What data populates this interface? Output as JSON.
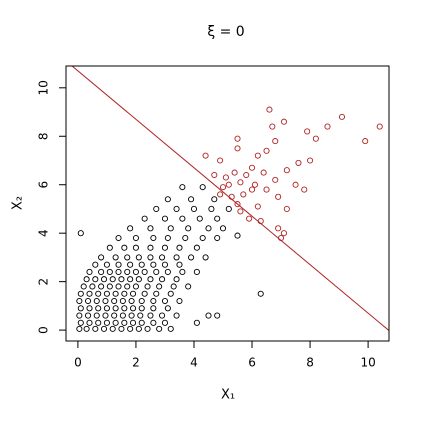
{
  "chart_data": {
    "type": "scatter",
    "title": "ξ = 0",
    "x_label": "X₁",
    "y_label": "X₂",
    "xlim": [
      -0.41,
      10.72
    ],
    "ylim": [
      -0.45,
      10.9
    ],
    "xticks": [
      0,
      2,
      4,
      6,
      8,
      10
    ],
    "yticks": [
      0,
      2,
      4,
      6,
      8,
      10
    ],
    "line": {
      "intercept": 10.7,
      "slope": -1,
      "color": "#b22222"
    },
    "series": [
      {
        "color": "#000000",
        "x": [
          0.05,
          0.3,
          0.6,
          0.9,
          1.2,
          1.5,
          1.8,
          2.1,
          2.4,
          2.8,
          3.2,
          0.1,
          0.4,
          0.7,
          1.0,
          1.3,
          1.6,
          1.9,
          2.2,
          2.6,
          3.0,
          0.05,
          0.35,
          0.65,
          0.95,
          1.25,
          1.55,
          1.85,
          2.15,
          2.5,
          2.9,
          3.4,
          0.1,
          0.4,
          0.7,
          1.0,
          1.3,
          1.6,
          1.9,
          2.2,
          2.6,
          3.1,
          0.05,
          0.35,
          0.65,
          0.95,
          1.25,
          1.55,
          1.85,
          2.2,
          2.6,
          3.0,
          3.5,
          0.1,
          0.4,
          0.7,
          1.0,
          1.3,
          1.6,
          1.9,
          2.3,
          2.7,
          3.2,
          0.2,
          0.5,
          0.8,
          1.1,
          1.4,
          1.7,
          2.0,
          2.4,
          2.8,
          3.3,
          3.8,
          0.3,
          0.6,
          0.9,
          1.2,
          1.5,
          1.8,
          2.1,
          2.5,
          2.9,
          3.4,
          0.4,
          0.8,
          1.1,
          1.4,
          1.7,
          2.0,
          2.3,
          2.7,
          3.1,
          3.6,
          4.1,
          0.6,
          1.0,
          1.4,
          1.8,
          2.2,
          2.6,
          3.0,
          3.5,
          0.8,
          1.3,
          1.7,
          2.1,
          2.5,
          2.9,
          3.4,
          3.9,
          4.4,
          1.1,
          1.6,
          2.0,
          2.5,
          3.0,
          3.5,
          4.1,
          1.4,
          2.0,
          2.6,
          3.1,
          3.7,
          4.3,
          4.8,
          1.8,
          2.5,
          3.2,
          3.8,
          4.5,
          5.0,
          2.3,
          3.0,
          3.6,
          4.2,
          4.8,
          2.7,
          3.4,
          4.0,
          4.6,
          5.2,
          3.1,
          3.9,
          4.7,
          3.6,
          4.3,
          0.1,
          6.3,
          4.1,
          4.5,
          4.8,
          5.5
        ],
        "y": [
          0.05,
          0.05,
          0.05,
          0.05,
          0.05,
          0.05,
          0.05,
          0.05,
          0.05,
          0.05,
          0.05,
          0.3,
          0.3,
          0.3,
          0.3,
          0.3,
          0.3,
          0.3,
          0.3,
          0.3,
          0.3,
          0.6,
          0.6,
          0.6,
          0.6,
          0.6,
          0.6,
          0.6,
          0.6,
          0.6,
          0.6,
          0.6,
          0.9,
          0.9,
          0.9,
          0.9,
          0.9,
          0.9,
          0.9,
          0.9,
          0.9,
          0.9,
          1.2,
          1.2,
          1.2,
          1.2,
          1.2,
          1.2,
          1.2,
          1.2,
          1.2,
          1.2,
          1.2,
          1.5,
          1.5,
          1.5,
          1.5,
          1.5,
          1.5,
          1.5,
          1.5,
          1.5,
          1.5,
          1.8,
          1.8,
          1.8,
          1.8,
          1.8,
          1.8,
          1.8,
          1.8,
          1.8,
          1.8,
          1.8,
          2.1,
          2.1,
          2.1,
          2.1,
          2.1,
          2.1,
          2.1,
          2.1,
          2.1,
          2.1,
          2.4,
          2.4,
          2.4,
          2.4,
          2.4,
          2.4,
          2.4,
          2.4,
          2.4,
          2.4,
          2.4,
          2.7,
          2.7,
          2.7,
          2.7,
          2.7,
          2.7,
          2.7,
          2.7,
          3.0,
          3.0,
          3.0,
          3.0,
          3.0,
          3.0,
          3.0,
          3.0,
          3.0,
          3.4,
          3.4,
          3.4,
          3.4,
          3.4,
          3.4,
          3.4,
          3.8,
          3.8,
          3.8,
          3.8,
          3.8,
          3.8,
          3.8,
          4.2,
          4.2,
          4.2,
          4.2,
          4.2,
          4.2,
          4.6,
          4.6,
          4.6,
          4.6,
          4.6,
          5.0,
          5.0,
          5.0,
          5.0,
          5.0,
          5.4,
          5.4,
          5.4,
          5.9,
          5.9,
          4.0,
          1.5,
          0.3,
          0.6,
          0.6,
          3.9
        ]
      },
      {
        "color": "#b22222",
        "x": [
          10.4,
          9.9,
          9.1,
          8.6,
          8.2,
          7.9,
          8.0,
          7.6,
          6.6,
          6.7,
          6.8,
          6.5,
          7.1,
          5.5,
          5.5,
          6.2,
          6.0,
          5.8,
          5.4,
          5.1,
          4.7,
          4.4,
          4.9,
          7.2,
          7.5,
          7.8,
          7.2,
          6.9,
          6.5,
          6.8,
          6.4,
          6.2,
          6.0,
          5.7,
          5.3,
          5.0,
          4.9,
          5.6,
          5.9,
          6.3,
          6.9,
          7.0,
          7.1,
          5.5,
          5.2,
          5.6,
          6.1
        ],
        "y": [
          8.4,
          7.8,
          8.8,
          8.4,
          7.9,
          8.2,
          7.0,
          6.9,
          9.1,
          8.4,
          7.8,
          7.4,
          8.6,
          7.9,
          7.5,
          7.2,
          6.7,
          6.4,
          6.5,
          6.3,
          6.4,
          7.2,
          7.0,
          6.6,
          6.0,
          5.8,
          5.0,
          5.5,
          5.8,
          6.2,
          6.5,
          5.1,
          5.8,
          5.6,
          5.5,
          5.9,
          5.6,
          4.9,
          4.6,
          4.5,
          4.2,
          3.8,
          4.0,
          5.2,
          6.0,
          6.1,
          6.0
        ]
      }
    ]
  }
}
